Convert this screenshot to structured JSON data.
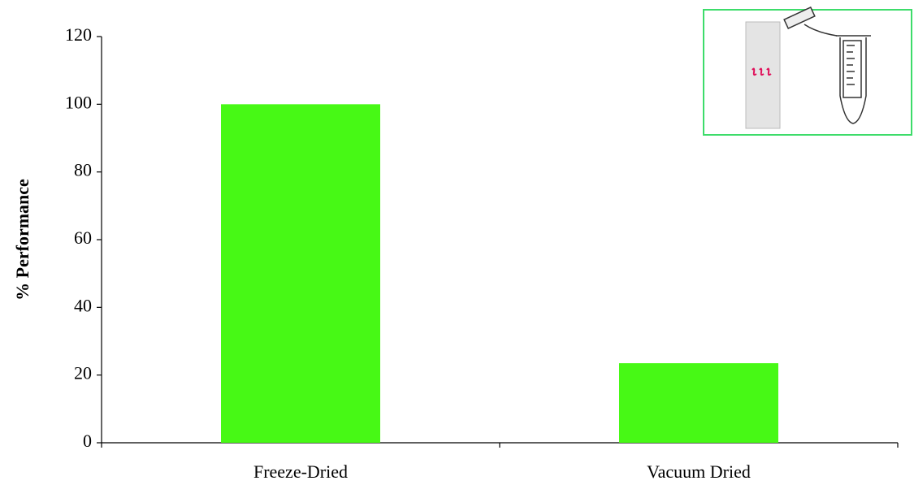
{
  "chart_data": {
    "type": "bar",
    "categories": [
      "Freeze-Dried",
      "Vacuum Dried"
    ],
    "values": [
      100,
      23.5
    ],
    "color": "#47f915",
    "ylabel": "% Performance",
    "ylim": [
      0,
      120
    ],
    "yticks": [
      0,
      20,
      40,
      60,
      80,
      100,
      120
    ]
  }
}
